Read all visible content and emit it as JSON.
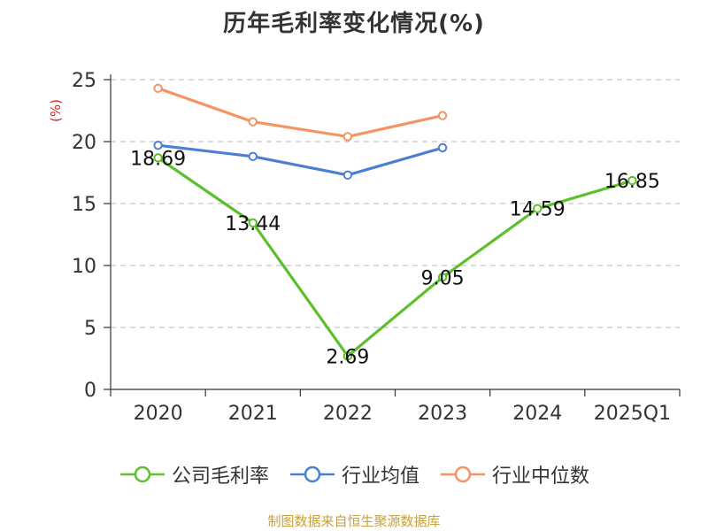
{
  "chart_data": {
    "type": "line",
    "title": "历年毛利率变化情况(%)",
    "ylabel": "(%)",
    "categories": [
      "2020",
      "2021",
      "2022",
      "2023",
      "2024",
      "2025Q1"
    ],
    "ylim": [
      0,
      25
    ],
    "yticks": [
      0,
      5,
      10,
      15,
      20,
      25
    ],
    "grid": true,
    "legend_position": "bottom",
    "series": [
      {
        "name": "公司毛利率",
        "color": "#5dbf2a",
        "values": [
          18.69,
          13.44,
          2.69,
          9.05,
          14.59,
          16.85
        ],
        "show_labels": true
      },
      {
        "name": "行业均值",
        "color": "#4a7fd4",
        "values": [
          19.7,
          18.8,
          17.3,
          19.5,
          null,
          null
        ],
        "show_labels": false
      },
      {
        "name": "行业中位数",
        "color": "#f59460",
        "values": [
          24.3,
          21.6,
          20.4,
          22.1,
          null,
          null
        ],
        "show_labels": false
      }
    ]
  },
  "source": "制图数据来自恒生聚源数据库"
}
